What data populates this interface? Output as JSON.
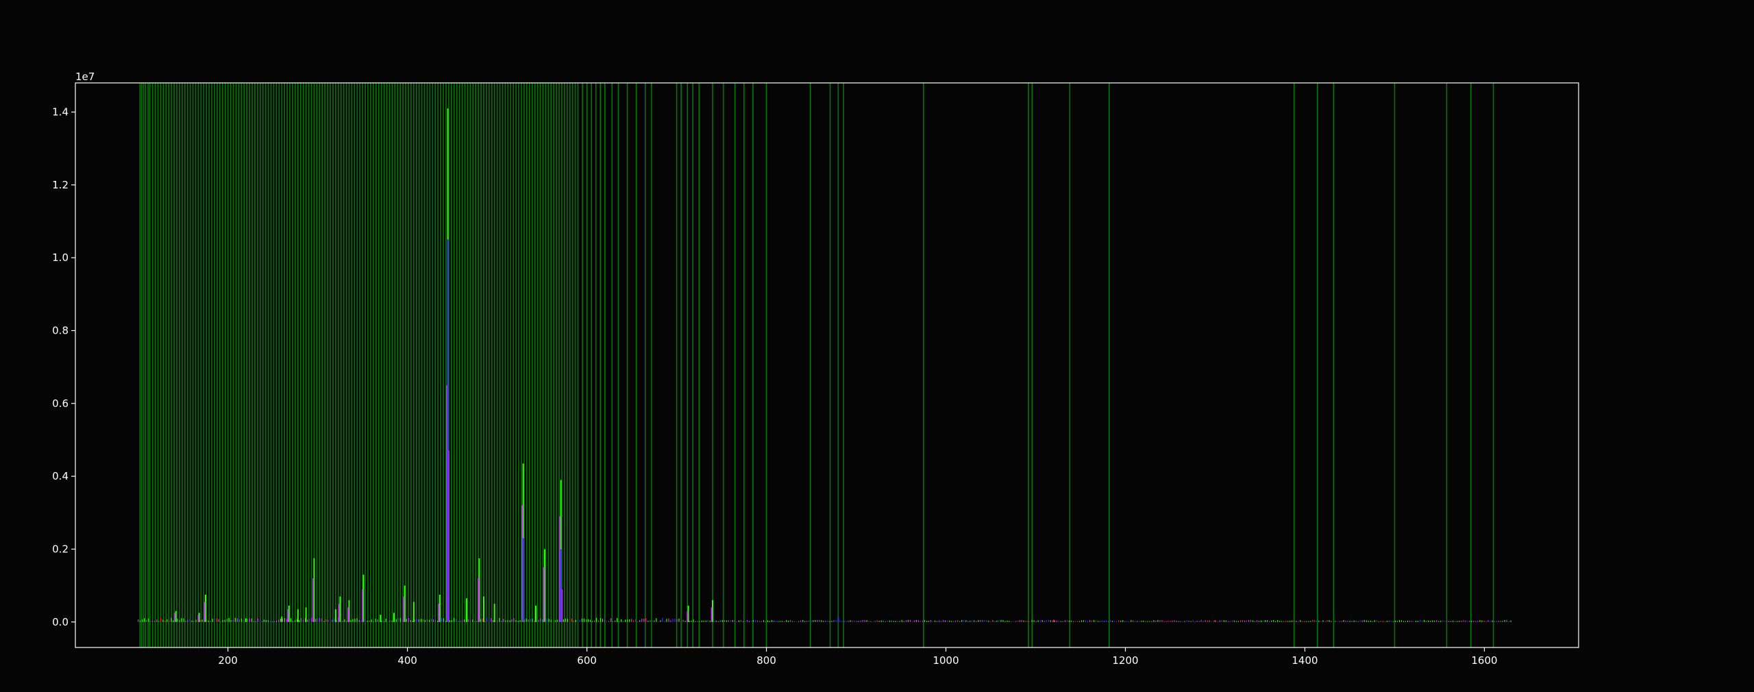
{
  "chart_data": {
    "type": "bar",
    "title": "",
    "xlabel": "",
    "ylabel": "",
    "xlim": [
      30,
      1705
    ],
    "ylim": [
      -700000,
      14800000
    ],
    "y_offset_label": "1e7",
    "x_ticks": [
      200,
      400,
      600,
      800,
      1000,
      1200,
      1400,
      1600
    ],
    "x_tick_labels": [
      "200",
      "400",
      "600",
      "800",
      "1000",
      "1200",
      "1400",
      "1600"
    ],
    "y_ticks": [
      0,
      2000000,
      4000000,
      6000000,
      8000000,
      10000000,
      12000000,
      14000000
    ],
    "y_tick_labels": [
      "0.0",
      "0.2",
      "0.4",
      "0.6",
      "0.8",
      "1.0",
      "1.2",
      "1.4"
    ],
    "grid": false,
    "colors": {
      "background": "#050505",
      "axes": "#ffffff",
      "band": "#00a000",
      "green_peak": "#33ff00",
      "magenta_peak": "#cc33ff",
      "blue_peak": "#3333ff",
      "red_peak": "#ff2222"
    },
    "highlight_lines_x": [
      102,
      104,
      106,
      108,
      111,
      113,
      116,
      119,
      122,
      125,
      128,
      131,
      134,
      137,
      140,
      143,
      146,
      149,
      152,
      155,
      158,
      161,
      164,
      167,
      170,
      173,
      176,
      179,
      182,
      185,
      188,
      191,
      194,
      197,
      200,
      203,
      206,
      209,
      212,
      215,
      218,
      221,
      224,
      227,
      230,
      233,
      236,
      239,
      242,
      245,
      248,
      251,
      254,
      257,
      260,
      263,
      266,
      269,
      272,
      275,
      278,
      281,
      284,
      287,
      290,
      293,
      296,
      299,
      302,
      305,
      308,
      311,
      314,
      317,
      320,
      323,
      326,
      329,
      332,
      335,
      338,
      341,
      344,
      347,
      350,
      353,
      356,
      359,
      362,
      365,
      368,
      371,
      374,
      377,
      380,
      383,
      386,
      389,
      392,
      395,
      398,
      401,
      404,
      407,
      410,
      413,
      416,
      419,
      422,
      425,
      428,
      431,
      434,
      437,
      440,
      443,
      446,
      449,
      452,
      455,
      458,
      461,
      464,
      467,
      470,
      473,
      476,
      479,
      482,
      485,
      488,
      491,
      494,
      497,
      500,
      503,
      506,
      509,
      512,
      515,
      518,
      521,
      524,
      527,
      530,
      533,
      536,
      539,
      542,
      545,
      548,
      551,
      554,
      557,
      560,
      563,
      566,
      569,
      572,
      575,
      578,
      581,
      584,
      587,
      590,
      595,
      600,
      605,
      610,
      615,
      620,
      628,
      635,
      645,
      655,
      665,
      672,
      700,
      705,
      712,
      718,
      725,
      740,
      752,
      765,
      775,
      785,
      800,
      849,
      871,
      880,
      886,
      975,
      1092,
      1096,
      1138,
      1182,
      1388,
      1414,
      1432,
      1500,
      1558,
      1585,
      1610
    ],
    "peaks": [
      {
        "x": 142,
        "y": 300000,
        "color": "green"
      },
      {
        "x": 168,
        "y": 250000,
        "color": "green"
      },
      {
        "x": 175,
        "y": 750000,
        "color": "green"
      },
      {
        "x": 220,
        "y": 100000,
        "color": "green"
      },
      {
        "x": 260,
        "y": 150000,
        "color": "green"
      },
      {
        "x": 268,
        "y": 450000,
        "color": "green"
      },
      {
        "x": 278,
        "y": 350000,
        "color": "green"
      },
      {
        "x": 287,
        "y": 400000,
        "color": "green"
      },
      {
        "x": 296,
        "y": 1750000,
        "color": "green"
      },
      {
        "x": 320,
        "y": 350000,
        "color": "green"
      },
      {
        "x": 325,
        "y": 700000,
        "color": "green"
      },
      {
        "x": 335,
        "y": 600000,
        "color": "green"
      },
      {
        "x": 351,
        "y": 1300000,
        "color": "green"
      },
      {
        "x": 370,
        "y": 200000,
        "color": "green"
      },
      {
        "x": 385,
        "y": 250000,
        "color": "green"
      },
      {
        "x": 397,
        "y": 1000000,
        "color": "green"
      },
      {
        "x": 407,
        "y": 550000,
        "color": "green"
      },
      {
        "x": 436,
        "y": 750000,
        "color": "green"
      },
      {
        "x": 445,
        "y": 14100000,
        "color": "green"
      },
      {
        "x": 466,
        "y": 650000,
        "color": "green"
      },
      {
        "x": 480,
        "y": 1750000,
        "color": "green"
      },
      {
        "x": 485,
        "y": 700000,
        "color": "green"
      },
      {
        "x": 497,
        "y": 500000,
        "color": "green"
      },
      {
        "x": 529,
        "y": 4350000,
        "color": "green"
      },
      {
        "x": 543,
        "y": 450000,
        "color": "green"
      },
      {
        "x": 553,
        "y": 2000000,
        "color": "green"
      },
      {
        "x": 571,
        "y": 3900000,
        "color": "green"
      },
      {
        "x": 713,
        "y": 450000,
        "color": "green"
      },
      {
        "x": 740,
        "y": 600000,
        "color": "green"
      },
      {
        "x": 141,
        "y": 250000,
        "color": "magenta"
      },
      {
        "x": 167,
        "y": 200000,
        "color": "magenta"
      },
      {
        "x": 174,
        "y": 550000,
        "color": "magenta"
      },
      {
        "x": 267,
        "y": 350000,
        "color": "magenta"
      },
      {
        "x": 295,
        "y": 1200000,
        "color": "magenta"
      },
      {
        "x": 324,
        "y": 500000,
        "color": "magenta"
      },
      {
        "x": 334,
        "y": 400000,
        "color": "magenta"
      },
      {
        "x": 350,
        "y": 900000,
        "color": "magenta"
      },
      {
        "x": 396,
        "y": 700000,
        "color": "magenta"
      },
      {
        "x": 435,
        "y": 500000,
        "color": "magenta"
      },
      {
        "x": 444,
        "y": 6500000,
        "color": "magenta"
      },
      {
        "x": 446,
        "y": 4700000,
        "color": "magenta"
      },
      {
        "x": 479,
        "y": 1200000,
        "color": "magenta"
      },
      {
        "x": 528,
        "y": 3200000,
        "color": "magenta"
      },
      {
        "x": 552,
        "y": 1500000,
        "color": "magenta"
      },
      {
        "x": 570,
        "y": 2900000,
        "color": "magenta"
      },
      {
        "x": 572,
        "y": 900000,
        "color": "magenta"
      },
      {
        "x": 712,
        "y": 300000,
        "color": "magenta"
      },
      {
        "x": 739,
        "y": 400000,
        "color": "magenta"
      },
      {
        "x": 445,
        "y": 10500000,
        "color": "blue"
      },
      {
        "x": 529,
        "y": 2300000,
        "color": "blue"
      },
      {
        "x": 571,
        "y": 2000000,
        "color": "blue"
      },
      {
        "x": 880,
        "y": 120000,
        "color": "blue"
      },
      {
        "x": 1120,
        "y": 60000,
        "color": "red"
      },
      {
        "x": 1300,
        "y": 50000,
        "color": "red"
      }
    ]
  }
}
